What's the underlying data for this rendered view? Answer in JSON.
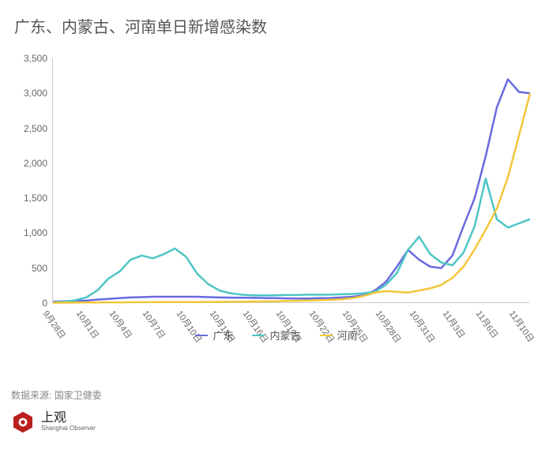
{
  "title": "广东、内蒙古、河南单日新增感染数",
  "chart": {
    "type": "line",
    "ylim": [
      0,
      3500
    ],
    "ytick_step": 500,
    "yticks": [
      "0",
      "500",
      "1,000",
      "1,500",
      "2,000",
      "2,500",
      "3,000",
      "3,500"
    ],
    "x_labels": [
      "9月28日",
      "10月1日",
      "10月4日",
      "10月7日",
      "10月10日",
      "10月13日",
      "10月16日",
      "10月19日",
      "10月22日",
      "10月25日",
      "10月28日",
      "10月31日",
      "11月3日",
      "11月6日",
      "11月10日"
    ],
    "x_count": 44,
    "background_color": "#ffffff",
    "axis_color": "#cccccc",
    "tick_font_size": 12,
    "line_width": 2.5,
    "series": [
      {
        "name": "广东",
        "color": "#6a6ae0",
        "values": [
          20,
          25,
          30,
          35,
          50,
          60,
          70,
          80,
          85,
          90,
          90,
          90,
          90,
          90,
          85,
          80,
          78,
          76,
          74,
          72,
          70,
          68,
          66,
          66,
          70,
          72,
          80,
          90,
          110,
          180,
          300,
          520,
          760,
          620,
          520,
          500,
          680,
          1100,
          1500,
          2100,
          2800,
          3200,
          3020,
          3000
        ]
      },
      {
        "name": "内蒙古",
        "color": "#4ec5c5",
        "values": [
          10,
          20,
          40,
          80,
          180,
          350,
          450,
          620,
          680,
          640,
          700,
          780,
          660,
          420,
          270,
          180,
          140,
          120,
          110,
          110,
          110,
          115,
          115,
          120,
          120,
          120,
          125,
          130,
          140,
          160,
          260,
          430,
          760,
          950,
          700,
          580,
          540,
          720,
          1100,
          1780,
          1200,
          1080,
          1140,
          1200
        ]
      },
      {
        "name": "河南",
        "color": "#f3c63a",
        "values": [
          5,
          6,
          7,
          8,
          9,
          10,
          10,
          11,
          12,
          12,
          13,
          14,
          14,
          15,
          16,
          17,
          18,
          20,
          22,
          24,
          26,
          30,
          32,
          36,
          40,
          46,
          54,
          70,
          100,
          150,
          170,
          160,
          150,
          180,
          210,
          260,
          360,
          520,
          770,
          1050,
          1350,
          1800,
          2400,
          3000
        ]
      }
    ]
  },
  "legend": {
    "items": [
      {
        "label": "广东",
        "color": "#6a6ae0"
      },
      {
        "label": "内蒙古",
        "color": "#4ec5c5"
      },
      {
        "label": "河南",
        "color": "#f3c63a"
      }
    ]
  },
  "source": {
    "prefix": "数据来源:",
    "value": "国家卫健委"
  },
  "logo": {
    "cn": "上观",
    "en": "Shanghai Observer",
    "color": "#b9201e"
  }
}
